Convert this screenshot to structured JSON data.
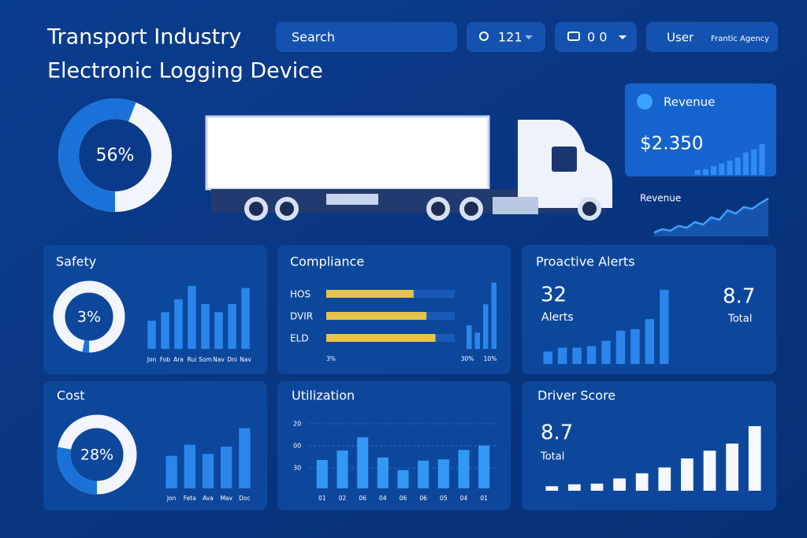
{
  "header": {
    "title": "Transport Industry",
    "subtitle": "Electronic Logging Device",
    "search": "Search",
    "filter_count": "121",
    "filter_cards": "0 0",
    "user": "User",
    "agency": "Frantic Agency"
  },
  "gauge": {
    "value": 56,
    "label": "56%"
  },
  "revenue_card": {
    "title": "Revenue",
    "value": "$2.350",
    "values": [
      12,
      14,
      22,
      28,
      35,
      42,
      55,
      62,
      75
    ],
    "ylim": [
      0,
      100
    ]
  },
  "revenue_trend": {
    "title": "Revenue",
    "values": [
      8,
      15,
      12,
      22,
      18,
      30,
      25,
      40,
      35,
      55,
      48,
      62,
      58,
      70,
      80
    ],
    "ylim": [
      0,
      100
    ]
  },
  "safety": {
    "title": "Safety",
    "gauge": {
      "value": 3,
      "label": "3%"
    },
    "categories": [
      "Jon",
      "Fob",
      "Ara",
      "Rui",
      "Som",
      "Nav",
      "Dni",
      "Nav"
    ],
    "values": [
      42,
      55,
      74,
      94,
      67,
      55,
      67,
      91
    ],
    "ylim": [
      0,
      100
    ]
  },
  "compliance": {
    "title": "Compliance",
    "rows": [
      {
        "label": "HOS",
        "value": 68
      },
      {
        "label": "DVIR",
        "value": 78
      },
      {
        "label": "ELD",
        "value": 85
      }
    ],
    "xlim": [
      0,
      100
    ],
    "axis_labels": [
      "3%",
      "30%",
      "10%"
    ],
    "values": [
      35,
      24,
      66,
      98
    ],
    "ylim": [
      0,
      100
    ]
  },
  "alerts": {
    "title": "Proactive Alerts",
    "count": 32,
    "count_label": "Alerts",
    "total": 8.7,
    "total_label": "Total",
    "values": [
      16,
      21,
      21,
      23,
      30,
      43,
      45,
      58,
      96
    ],
    "ylim": [
      0,
      100
    ]
  },
  "cost": {
    "title": "Cost",
    "gauge": {
      "value": 28,
      "label": "28%"
    },
    "categories": [
      "Jon",
      "Feta",
      "Ava",
      "Mav",
      "Doc"
    ],
    "values": [
      53,
      71,
      56,
      68,
      98
    ],
    "ylim": [
      0,
      100
    ]
  },
  "utilization": {
    "title": "Utilization",
    "y_labels": [
      "20",
      "00",
      "30"
    ],
    "categories": [
      "01",
      "02",
      "06",
      "04",
      "06",
      "06",
      "05",
      "04",
      "01"
    ],
    "values": [
      45,
      60,
      81,
      49,
      29,
      44,
      46,
      61,
      68
    ],
    "ylim": [
      0,
      100
    ]
  },
  "driver_score": {
    "title": "Driver Score",
    "score": 8.7,
    "score_label": "Total",
    "values": [
      7,
      10,
      11,
      19,
      27,
      36,
      50,
      62,
      73,
      100
    ],
    "ylim": [
      0,
      100
    ]
  }
}
